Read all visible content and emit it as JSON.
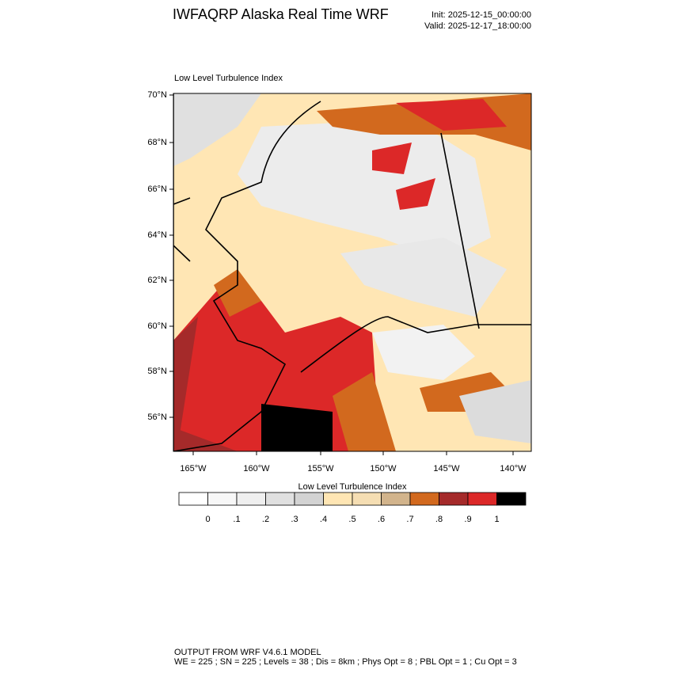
{
  "header": {
    "title": "IWFAQRP Alaska Real Time WRF",
    "init": "Init: 2025-12-15_00:00:00",
    "valid": "Valid: 2025-12-17_18:00:00"
  },
  "map": {
    "title": "Low Level Turbulence Index",
    "lat_labels": [
      "70°N",
      "68°N",
      "66°N",
      "64°N",
      "62°N",
      "60°N",
      "58°N",
      "56°N"
    ],
    "lon_labels": [
      "165°W",
      "160°W",
      "155°W",
      "150°W",
      "145°W",
      "140°W"
    ]
  },
  "colorbar": {
    "title": "Low Level Turbulence Index",
    "colors": [
      "#ffffff",
      "#f7f7f7",
      "#efefef",
      "#e0e0e0",
      "#d3d3d3",
      "#ffe6b4",
      "#f5deb3",
      "#d2b48c",
      "#d2691e",
      "#a52a2a",
      "#dc2828",
      "#000000"
    ],
    "labels": [
      "0",
      ".1",
      ".2",
      ".3",
      ".4",
      ".5",
      ".6",
      ".7",
      ".8",
      ".9",
      "1"
    ]
  },
  "footer": {
    "line1": "OUTPUT FROM WRF V4.6.1 MODEL",
    "line2": "WE = 225 ; SN = 225 ; Levels = 38 ; Dis = 8km ; Phys Opt = 8 ; PBL Opt = 1 ; Cu Opt = 3"
  }
}
